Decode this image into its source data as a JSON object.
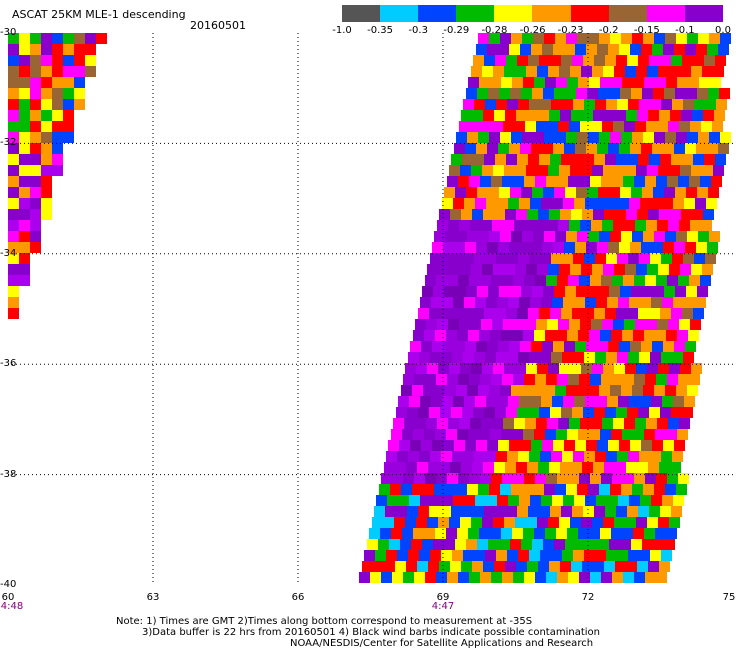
{
  "header": {
    "title": "ASCAT 25KM MLE-1 descending",
    "date": "20160501"
  },
  "colorbar": {
    "colors": [
      "#555555",
      "#00ccff",
      "#0044ff",
      "#00bb00",
      "#ffff00",
      "#ff9900",
      "#ff0000",
      "#996633",
      "#ff00ff",
      "#8800cc"
    ],
    "labels": [
      "-1.0",
      "-0.35",
      "-0.3",
      "-0.29",
      "-0.28",
      "-0.26",
      "-0.23",
      "-0.2",
      "-0.15",
      "-0.1",
      "0.0"
    ]
  },
  "axes": {
    "lat_labels": [
      "-30",
      "-32",
      "-34",
      "-36",
      "-38",
      "-40"
    ],
    "lon_labels": [
      "60",
      "63",
      "66",
      "69",
      "72",
      "75"
    ],
    "lat_range": [
      -40,
      -30
    ],
    "lon_range": [
      60,
      75
    ]
  },
  "time_labels": [
    {
      "lon": 60,
      "text": "4:48"
    },
    {
      "lon": 69,
      "text": "4:47"
    }
  ],
  "notes": {
    "line1": "Note: 1) Times are GMT 2)Times along bottom correspond to measurement at -35S",
    "line2": "3)Data buffer is 22 hrs from 20160501 4) Black wind barbs indicate possible contamination",
    "line3": "NOAA/NESDIS/Center for Satellite Applications and Research"
  }
}
